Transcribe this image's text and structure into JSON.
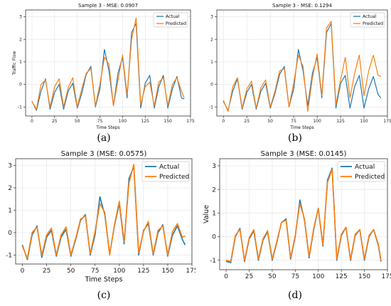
{
  "colors": {
    "actual": "#1f77b4",
    "predicted": "#ff7f0e",
    "grid": "#e6e6e6"
  },
  "chart_data": [
    {
      "type": "line",
      "panel_label": "(a)",
      "title": "Sample 3 - MSE: 0.0907",
      "xlabel": "Time Steps",
      "ylabel": "Traffic Flow",
      "xlim": [
        -7,
        175
      ],
      "ylim": [
        -1.4,
        3.3
      ],
      "xticks": [
        0,
        25,
        50,
        75,
        100,
        125,
        150,
        175
      ],
      "yticks": [
        -1,
        0,
        1,
        2,
        3
      ],
      "grid": true,
      "legend": "top-right",
      "series": [
        {
          "name": "Actual",
          "color": "#1f77b4",
          "x": [
            0,
            5,
            10,
            15,
            20,
            25,
            30,
            35,
            40,
            45,
            50,
            55,
            60,
            65,
            70,
            75,
            80,
            85,
            90,
            95,
            100,
            105,
            110,
            115,
            120,
            125,
            130,
            135,
            140,
            145,
            150,
            155,
            160,
            165,
            168
          ],
          "values": [
            -0.75,
            -1.15,
            -0.3,
            0.25,
            -1.1,
            -0.35,
            0.0,
            -1.1,
            -0.3,
            0.05,
            -1.05,
            -0.4,
            0.45,
            0.8,
            -1.0,
            -0.2,
            1.55,
            0.6,
            -0.95,
            0.5,
            1.2,
            -0.6,
            2.3,
            2.7,
            -1.05,
            0.05,
            0.4,
            -1.05,
            -0.1,
            0.4,
            -1.05,
            -0.2,
            0.35,
            -0.6,
            -0.65
          ]
        },
        {
          "name": "Predicted",
          "color": "#ff7f0e",
          "x": [
            0,
            5,
            10,
            15,
            20,
            25,
            30,
            35,
            40,
            45,
            50,
            55,
            60,
            65,
            70,
            75,
            80,
            85,
            90,
            95,
            100,
            105,
            110,
            115,
            120,
            125,
            130,
            135,
            140,
            145,
            150,
            155,
            160,
            165,
            168
          ],
          "values": [
            -0.75,
            -1.1,
            0.0,
            0.2,
            -1.0,
            -0.1,
            0.25,
            -1.0,
            -0.15,
            0.3,
            -1.0,
            -0.2,
            0.5,
            0.7,
            -0.95,
            0.0,
            1.2,
            0.9,
            -0.95,
            0.2,
            1.3,
            -0.45,
            2.0,
            2.95,
            -0.9,
            -0.1,
            0.1,
            -0.95,
            0.1,
            0.3,
            -0.95,
            0.0,
            0.3,
            -0.3,
            -0.6
          ]
        }
      ]
    },
    {
      "type": "line",
      "panel_label": "(b)",
      "title": "Sample 3 - MSE: 0.1294",
      "xlabel": "Time Steps",
      "ylabel": "",
      "xlim": [
        -7,
        175
      ],
      "ylim": [
        -1.4,
        3.3
      ],
      "xticks": [
        0,
        25,
        50,
        75,
        100,
        125,
        150,
        175
      ],
      "yticks": [
        -1,
        0,
        1,
        2,
        3
      ],
      "grid": true,
      "legend": "top-right",
      "series": [
        {
          "name": "Actual",
          "color": "#1f77b4",
          "x": [
            0,
            5,
            10,
            15,
            20,
            25,
            30,
            35,
            40,
            45,
            50,
            55,
            60,
            65,
            70,
            75,
            80,
            85,
            90,
            95,
            100,
            105,
            110,
            115,
            120,
            125,
            130,
            135,
            140,
            145,
            150,
            155,
            160,
            165,
            168
          ],
          "values": [
            -0.75,
            -1.15,
            -0.3,
            0.25,
            -1.1,
            -0.35,
            0.0,
            -1.1,
            -0.3,
            0.05,
            -1.05,
            -0.4,
            0.45,
            0.8,
            -1.0,
            -0.2,
            1.55,
            0.6,
            -0.95,
            0.5,
            1.2,
            -0.6,
            2.3,
            2.7,
            -1.05,
            0.05,
            0.4,
            -1.05,
            -0.1,
            0.4,
            -1.05,
            -0.2,
            0.35,
            -0.45,
            -0.6
          ]
        },
        {
          "name": "Predicted",
          "color": "#ff7f0e",
          "x": [
            0,
            5,
            10,
            15,
            20,
            25,
            30,
            35,
            40,
            45,
            50,
            55,
            60,
            65,
            70,
            75,
            80,
            85,
            90,
            95,
            100,
            105,
            110,
            115,
            120,
            125,
            130,
            135,
            140,
            145,
            150,
            155,
            160,
            165,
            168
          ],
          "values": [
            -0.7,
            -1.2,
            -0.1,
            0.3,
            -1.05,
            -0.2,
            0.15,
            -1.05,
            -0.15,
            0.2,
            -1.0,
            -0.3,
            0.6,
            0.7,
            -1.0,
            0.05,
            1.3,
            0.8,
            -1.2,
            0.3,
            1.35,
            -0.5,
            2.5,
            2.8,
            -0.9,
            0.2,
            1.2,
            -0.6,
            0.5,
            1.3,
            -0.5,
            0.6,
            1.3,
            0.4,
            0.35
          ]
        }
      ]
    },
    {
      "type": "line",
      "panel_label": "(c)",
      "title": "Sample 3 (MSE: 0.0575)",
      "xlabel": "Time Steps",
      "ylabel": "",
      "xlim": [
        -7,
        175
      ],
      "ylim": [
        -1.4,
        3.3
      ],
      "xticks": [
        0,
        25,
        50,
        75,
        100,
        125,
        150,
        175
      ],
      "yticks": [
        -1,
        0,
        1,
        2,
        3
      ],
      "grid": true,
      "legend": "top-right",
      "series": [
        {
          "name": "Actual",
          "color": "#1f77b4",
          "x": [
            0,
            5,
            10,
            15,
            20,
            25,
            30,
            35,
            40,
            45,
            50,
            55,
            60,
            65,
            70,
            75,
            80,
            85,
            90,
            95,
            100,
            105,
            110,
            115,
            120,
            125,
            130,
            135,
            140,
            145,
            150,
            155,
            160,
            165,
            168
          ],
          "values": [
            -0.55,
            -1.2,
            -0.1,
            0.3,
            -1.1,
            -0.2,
            0.1,
            -1.05,
            -0.2,
            0.15,
            -1.05,
            -0.3,
            0.55,
            0.8,
            -1.0,
            -0.1,
            1.6,
            0.8,
            -0.95,
            0.3,
            1.3,
            -0.5,
            2.4,
            2.95,
            -1.0,
            0.1,
            0.4,
            -1.0,
            0.0,
            0.35,
            -1.05,
            -0.1,
            0.3,
            -0.3,
            -0.55
          ]
        },
        {
          "name": "Predicted",
          "color": "#ff7f0e",
          "x": [
            0,
            5,
            10,
            15,
            20,
            25,
            30,
            35,
            40,
            45,
            50,
            55,
            60,
            65,
            70,
            75,
            80,
            85,
            90,
            95,
            100,
            105,
            110,
            115,
            120,
            125,
            130,
            135,
            140,
            145,
            150,
            155,
            160,
            165,
            168
          ],
          "values": [
            -0.6,
            -1.15,
            0.0,
            0.25,
            -1.0,
            -0.1,
            0.2,
            -1.0,
            -0.1,
            0.25,
            -1.0,
            -0.25,
            0.6,
            0.75,
            -0.95,
            0.05,
            1.3,
            0.9,
            -1.0,
            0.35,
            1.4,
            -0.4,
            2.2,
            3.05,
            -0.9,
            0.05,
            0.5,
            -0.95,
            0.1,
            0.3,
            -1.0,
            0.05,
            0.4,
            -0.2,
            -0.15
          ]
        }
      ]
    },
    {
      "type": "line",
      "panel_label": "(d)",
      "title": "Sample 3 (MSE: 0.0145)",
      "xlabel": "",
      "ylabel": "Value",
      "xlim": [
        -7,
        175
      ],
      "ylim": [
        -1.4,
        3.3
      ],
      "xticks": [
        0,
        25,
        50,
        75,
        100,
        125,
        150,
        175
      ],
      "yticks": [
        -1,
        0,
        1,
        2,
        3
      ],
      "grid": true,
      "legend": "top-right",
      "series": [
        {
          "name": "Actual",
          "color": "#1f77b4",
          "x": [
            0,
            5,
            10,
            15,
            20,
            25,
            30,
            35,
            40,
            45,
            50,
            55,
            60,
            65,
            70,
            75,
            80,
            85,
            90,
            95,
            100,
            105,
            110,
            115,
            120,
            125,
            130,
            135,
            140,
            145,
            150,
            155,
            160,
            165,
            168
          ],
          "values": [
            -1.05,
            -1.1,
            0.0,
            0.35,
            -1.05,
            -0.1,
            0.25,
            -1.0,
            -0.15,
            0.2,
            -1.0,
            -0.25,
            0.6,
            0.75,
            -0.95,
            0.0,
            1.55,
            0.7,
            -0.9,
            0.3,
            1.2,
            -0.4,
            2.4,
            2.9,
            -1.0,
            0.05,
            0.4,
            -1.0,
            0.05,
            0.3,
            -1.0,
            0.0,
            0.3,
            -0.35,
            -1.05
          ]
        },
        {
          "name": "Predicted",
          "color": "#ff7f0e",
          "x": [
            0,
            5,
            10,
            15,
            20,
            25,
            30,
            35,
            40,
            45,
            50,
            55,
            60,
            65,
            70,
            75,
            80,
            85,
            90,
            95,
            100,
            105,
            110,
            115,
            120,
            125,
            130,
            135,
            140,
            145,
            150,
            155,
            160,
            165,
            168
          ],
          "values": [
            -1.0,
            -1.05,
            0.05,
            0.3,
            -1.0,
            -0.05,
            0.3,
            -0.95,
            -0.1,
            0.25,
            -0.95,
            -0.2,
            0.6,
            0.7,
            -0.9,
            0.05,
            1.4,
            0.75,
            -0.85,
            0.35,
            1.2,
            -0.35,
            2.3,
            2.85,
            -0.95,
            0.1,
            0.4,
            -0.95,
            0.1,
            0.3,
            -0.95,
            0.05,
            0.3,
            -0.3,
            -1.0
          ]
        }
      ]
    }
  ]
}
